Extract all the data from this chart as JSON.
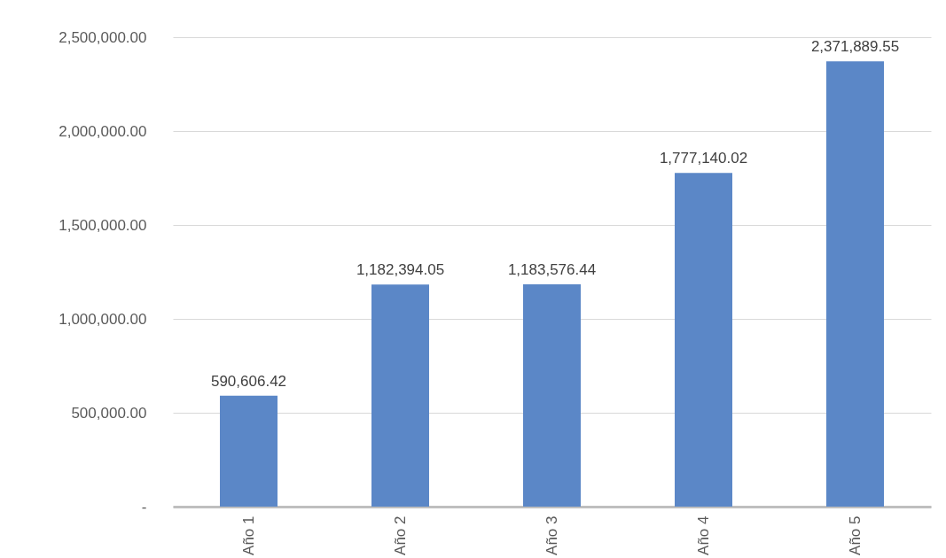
{
  "chart_data": {
    "type": "bar",
    "categories": [
      "Año 1",
      "Año 2",
      "Año 3",
      "Año 4",
      "Año 5"
    ],
    "values": [
      590606.42,
      1182394.05,
      1183576.44,
      1777140.02,
      2371889.55
    ],
    "value_labels": [
      "590,606.42",
      "1,182,394.05",
      "1,183,576.44",
      "1,777,140.02",
      "2,371,889.55"
    ],
    "color": "#5b87c7",
    "ylim": [
      0,
      2500000
    ],
    "yticks": [
      {
        "value": 0,
        "label": "-"
      },
      {
        "value": 500000,
        "label": "500,000.00"
      },
      {
        "value": 1000000,
        "label": "1,000,000.00"
      },
      {
        "value": 1500000,
        "label": "1,500,000.00"
      },
      {
        "value": 2000000,
        "label": "2,000,000.00"
      },
      {
        "value": 2500000,
        "label": "2,500,000.00"
      }
    ],
    "grid": "y"
  }
}
